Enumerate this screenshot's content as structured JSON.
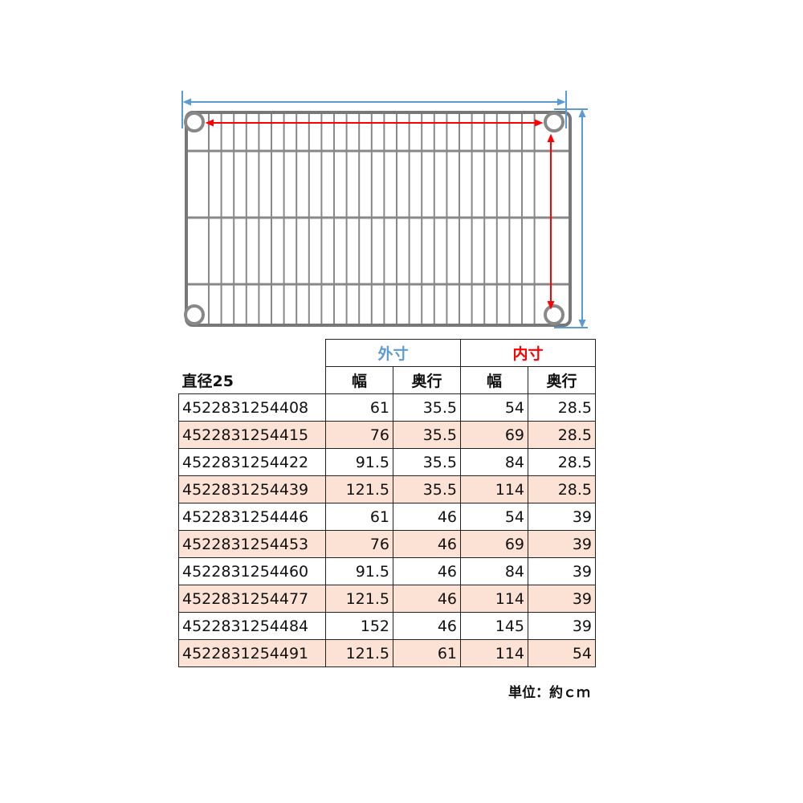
{
  "diagram": {
    "outer_arrow_color": "#5b9bd5",
    "inner_arrow_color": "#ff0000",
    "shelf_color": "#777777"
  },
  "table": {
    "label": "直径25",
    "groups": [
      {
        "label": "外寸",
        "color": "#5b9bd5"
      },
      {
        "label": "内寸",
        "color": "#ff0000"
      }
    ],
    "subheaders": [
      "幅",
      "奥行",
      "幅",
      "奥行"
    ],
    "row_highlight_color": "#fbe2d5",
    "rows": [
      {
        "code": "4522831254408",
        "outer_w": "61",
        "outer_d": "35.5",
        "inner_w": "54",
        "inner_d": "28.5"
      },
      {
        "code": "4522831254415",
        "outer_w": "76",
        "outer_d": "35.5",
        "inner_w": "69",
        "inner_d": "28.5"
      },
      {
        "code": "4522831254422",
        "outer_w": "91.5",
        "outer_d": "35.5",
        "inner_w": "84",
        "inner_d": "28.5"
      },
      {
        "code": "4522831254439",
        "outer_w": "121.5",
        "outer_d": "35.5",
        "inner_w": "114",
        "inner_d": "28.5"
      },
      {
        "code": "4522831254446",
        "outer_w": "61",
        "outer_d": "46",
        "inner_w": "54",
        "inner_d": "39"
      },
      {
        "code": "4522831254453",
        "outer_w": "76",
        "outer_d": "46",
        "inner_w": "69",
        "inner_d": "39"
      },
      {
        "code": "4522831254460",
        "outer_w": "91.5",
        "outer_d": "46",
        "inner_w": "84",
        "inner_d": "39"
      },
      {
        "code": "4522831254477",
        "outer_w": "121.5",
        "outer_d": "46",
        "inner_w": "114",
        "inner_d": "39"
      },
      {
        "code": "4522831254484",
        "outer_w": "152",
        "outer_d": "46",
        "inner_w": "145",
        "inner_d": "39"
      },
      {
        "code": "4522831254491",
        "outer_w": "121.5",
        "outer_d": "61",
        "inner_w": "114",
        "inner_d": "54"
      }
    ]
  },
  "unit_note": "単位：約ｃｍ"
}
